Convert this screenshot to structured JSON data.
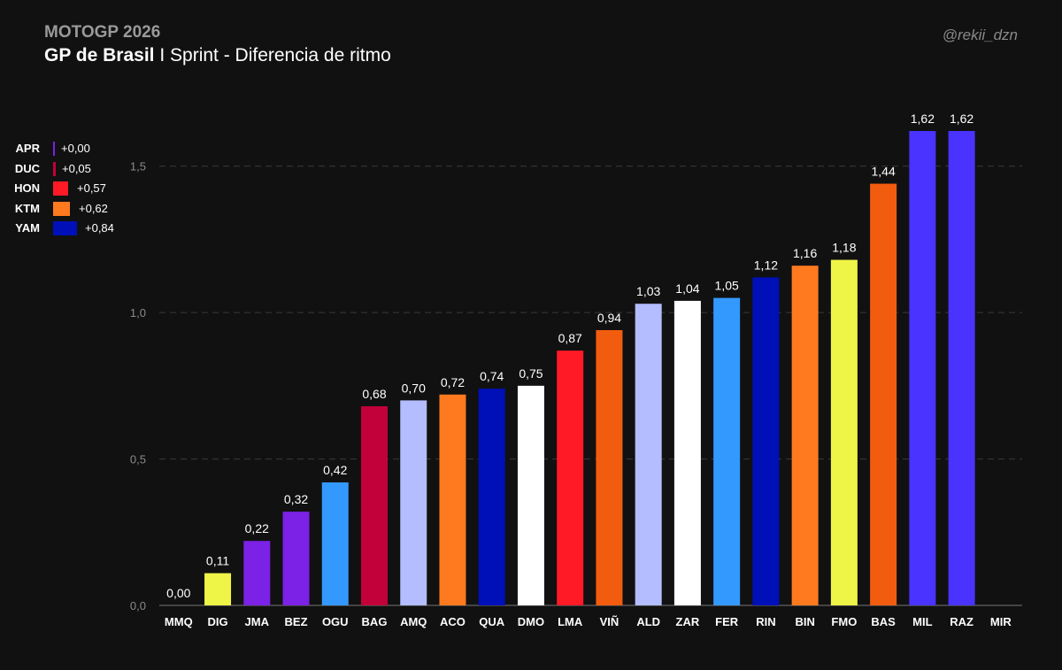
{
  "header": {
    "supertitle": "MOTOGP 2026",
    "title_bold": "GP de Brasil",
    "title_rest": " I Sprint - Diferencia de ritmo",
    "handle": "@rekii_dzn"
  },
  "legend": [
    {
      "name": "APR",
      "value": "+0,00",
      "color": "#7b22e6"
    },
    {
      "name": "DUC",
      "value": "+0,05",
      "color": "#c2003a"
    },
    {
      "name": "HON",
      "value": "+0,57",
      "color": "#ff1a26"
    },
    {
      "name": "KTM",
      "value": "+0,62",
      "color": "#ff7a1f"
    },
    {
      "name": "YAM",
      "value": "+0,84",
      "color": "#0010b8"
    }
  ],
  "chart_data": {
    "type": "bar",
    "title": "GP de Brasil I Sprint - Diferencia de ritmo",
    "xlabel": "",
    "ylabel": "",
    "ylim": [
      0,
      1.62
    ],
    "yticks": [
      "0,0",
      "0,5",
      "1,0",
      "1,5"
    ],
    "grid": true,
    "categories": [
      "MMQ",
      "DIG",
      "JMA",
      "BEZ",
      "OGU",
      "BAG",
      "AMQ",
      "ACO",
      "QUA",
      "DMO",
      "LMA",
      "VIÑ",
      "ALD",
      "ZAR",
      "FER",
      "RIN",
      "BIN",
      "FMO",
      "BAS",
      "MIL",
      "RAZ",
      "MIR"
    ],
    "values": [
      0.0,
      0.11,
      0.22,
      0.32,
      0.42,
      0.68,
      0.7,
      0.72,
      0.74,
      0.75,
      0.87,
      0.94,
      1.03,
      1.04,
      1.05,
      1.12,
      1.16,
      1.18,
      1.44,
      1.62,
      1.62,
      null
    ],
    "labels": [
      "0,00",
      "0,11",
      "0,22",
      "0,32",
      "0,42",
      "0,68",
      "0,70",
      "0,72",
      "0,74",
      "0,75",
      "0,87",
      "0,94",
      "1,03",
      "1,04",
      "1,05",
      "1,12",
      "1,16",
      "1,18",
      "1,44",
      "1,62",
      "1,62",
      ""
    ],
    "colors": [
      "#e6f23d",
      "#eef547",
      "#7b22e6",
      "#7b22e6",
      "#3399ff",
      "#c2003a",
      "#b3bdff",
      "#ff7a1f",
      "#0010b8",
      "#ffffff",
      "#ff1a26",
      "#f25c0f",
      "#b3bdff",
      "#ffffff",
      "#3399ff",
      "#0010b8",
      "#ff7a1f",
      "#eef547",
      "#f25c0f",
      "#4a33ff",
      "#4a33ff",
      "#4a33ff"
    ]
  }
}
